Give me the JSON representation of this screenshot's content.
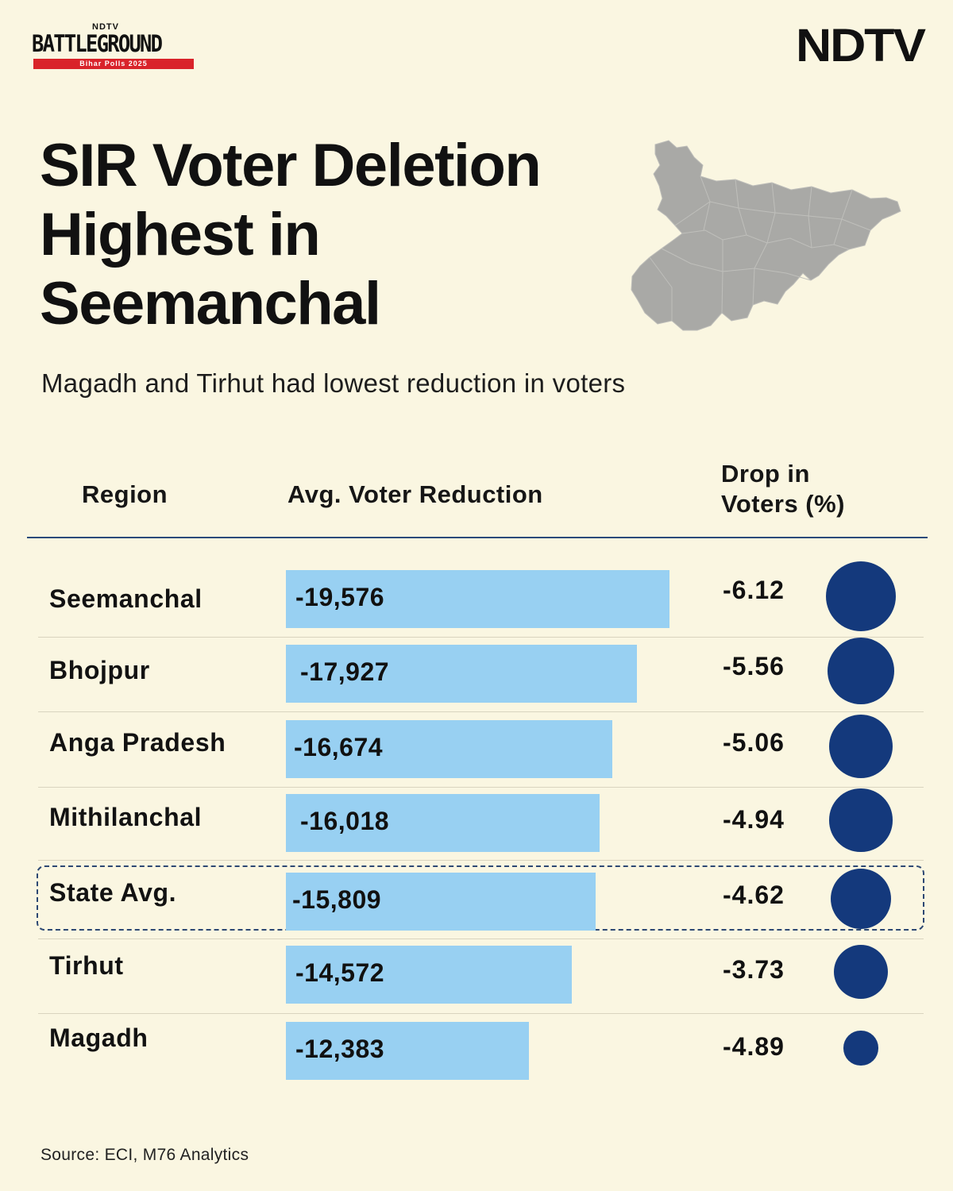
{
  "branding": {
    "battleground_top": "NDTV",
    "battleground_word": "BATTLEGROUND",
    "battleground_strip": "Bihar Polls 2025",
    "ndtv_logo": "NDTV",
    "brand_red": "#d9232a"
  },
  "map": {
    "icon": "bihar-map-icon",
    "color": "#a9a9a6"
  },
  "chart_data": {
    "type": "table",
    "title": [
      "SIR Voter Deletion",
      "Highest in",
      "Seemanchal"
    ],
    "subtitle": "Magadh and Tirhut had lowest reduction in voters",
    "columns": [
      "Region",
      "Avg. Voter Reduction",
      "Drop in Voters (%)"
    ],
    "drop_header_lines": [
      "Drop in",
      "Voters (%)"
    ],
    "categories": [
      "Seemanchal",
      "Bhojpur",
      "Anga Pradesh",
      "Mithilanchal",
      "State Avg.",
      "Tirhut",
      "Magadh"
    ],
    "series": [
      {
        "name": "Avg. Voter Reduction",
        "values": [
          -19576,
          -17927,
          -16674,
          -16018,
          -15809,
          -14572,
          -12383
        ]
      },
      {
        "name": "Drop in Voters (%)",
        "values": [
          -6.12,
          -5.56,
          -5.06,
          -4.94,
          -4.62,
          -3.73,
          -4.89
        ]
      }
    ],
    "bar_labels": [
      "-19,576",
      "-17,927",
      "-16,674",
      "-16,018",
      "-15,809",
      "-14,572",
      "-12,383"
    ],
    "pct_labels": [
      "-6.12",
      "-5.56",
      "-5.06",
      "-4.94",
      "-4.62",
      "-3.73",
      "-4.89"
    ],
    "highlight": "State Avg.",
    "source": "Source: ECI, M76 Analytics",
    "colors": {
      "bar": "#98d0f2",
      "dot": "#14397c",
      "background": "#faf6e1"
    }
  }
}
